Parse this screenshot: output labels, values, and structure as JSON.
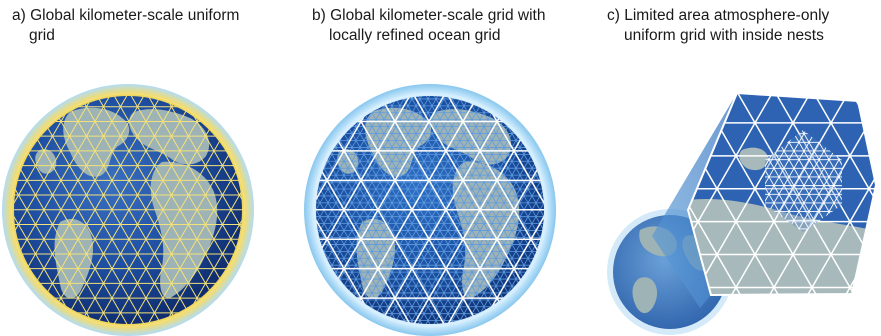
{
  "captions": {
    "a": {
      "line1": "a) Global kilometer-scale uniform",
      "line2": "grid"
    },
    "b": {
      "line1": "b) Global kilometer-scale grid with",
      "line2": "locally refined ocean grid"
    },
    "c": {
      "line1": "c) Limited area atmosphere-only",
      "line2": "uniform grid with inside nests"
    }
  },
  "colors": {
    "ocean_dark": "#12327a",
    "ocean_mid": "#1f4fa3",
    "ocean_light": "#4e86c9",
    "land": "#9eb3b5",
    "grid_yellow": "#f3e27a",
    "grid_white": "#ffffff",
    "halo_blue": "#a9d8f5",
    "halo_yellow": "#f0d860"
  }
}
